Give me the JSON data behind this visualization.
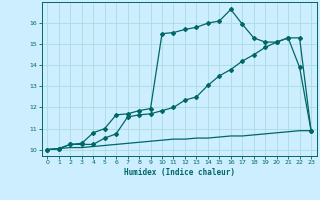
{
  "title": "",
  "xlabel": "Humidex (Indice chaleur)",
  "bg_color": "#cceeff",
  "grid_color": "#aadddd",
  "line_color": "#006666",
  "xlim": [
    -0.5,
    23.5
  ],
  "ylim": [
    9.7,
    17.0
  ],
  "xticks": [
    0,
    1,
    2,
    3,
    4,
    5,
    6,
    7,
    8,
    9,
    10,
    11,
    12,
    13,
    14,
    15,
    16,
    17,
    18,
    19,
    20,
    21,
    22,
    23
  ],
  "yticks": [
    10,
    11,
    12,
    13,
    14,
    15,
    16
  ],
  "curve1_x": [
    0,
    1,
    2,
    3,
    4,
    5,
    6,
    7,
    8,
    9,
    10,
    11,
    12,
    13,
    14,
    15,
    16,
    17,
    18,
    19,
    20,
    21,
    22,
    23
  ],
  "curve1_y": [
    10.0,
    10.05,
    10.1,
    10.1,
    10.15,
    10.2,
    10.25,
    10.3,
    10.35,
    10.4,
    10.45,
    10.5,
    10.5,
    10.55,
    10.55,
    10.6,
    10.65,
    10.65,
    10.7,
    10.75,
    10.8,
    10.85,
    10.9,
    10.9
  ],
  "curve2_x": [
    0,
    1,
    2,
    3,
    4,
    5,
    6,
    7,
    8,
    9,
    10,
    11,
    12,
    13,
    14,
    15,
    16,
    17,
    18,
    19,
    20,
    21,
    22,
    23
  ],
  "curve2_y": [
    10.0,
    10.05,
    10.25,
    10.25,
    10.25,
    10.55,
    10.75,
    11.55,
    11.65,
    11.7,
    11.85,
    12.0,
    12.35,
    12.5,
    13.05,
    13.5,
    13.8,
    14.2,
    14.5,
    14.85,
    15.1,
    15.3,
    15.3,
    10.9
  ],
  "curve3_x": [
    0,
    1,
    2,
    3,
    4,
    5,
    6,
    7,
    8,
    9,
    10,
    11,
    12,
    13,
    14,
    15,
    16,
    17,
    18,
    19,
    20,
    21,
    22,
    23
  ],
  "curve3_y": [
    10.0,
    10.05,
    10.25,
    10.3,
    10.8,
    11.0,
    11.65,
    11.7,
    11.85,
    11.95,
    15.5,
    15.55,
    15.7,
    15.8,
    16.0,
    16.1,
    16.65,
    15.95,
    15.3,
    15.1,
    15.1,
    15.3,
    13.9,
    10.9
  ],
  "marker_size": 2.0,
  "linewidth": 0.9
}
